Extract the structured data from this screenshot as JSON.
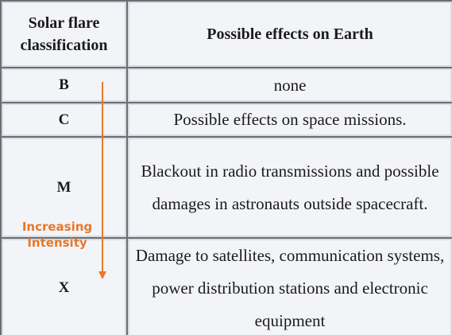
{
  "header": {
    "col1": "Solar flare classification",
    "col2": "Possible effects on Earth"
  },
  "rows": [
    {
      "class": "B",
      "effect": "none"
    },
    {
      "class": "C",
      "effect": "Possible effects on space missions."
    },
    {
      "class": "M",
      "effect": "Blackout in radio transmissions and possible damages in astronauts outside spacecraft."
    },
    {
      "class": "X",
      "effect": "Damage to satellites, communication systems, power distribution stations and electronic equipment"
    }
  ],
  "annotation": {
    "label_line1": "Increasing",
    "label_line2": "Intensity",
    "color": "#e8782a"
  }
}
